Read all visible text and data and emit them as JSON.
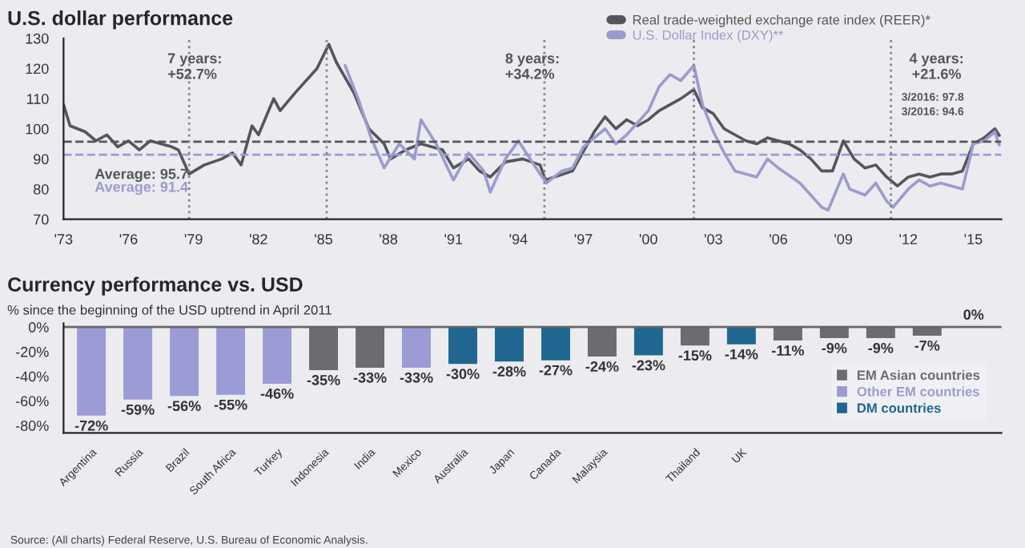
{
  "chart_data": [
    {
      "type": "line",
      "title": "U.S. dollar performance",
      "legend": "top right",
      "xlim": [
        1973,
        2016.3
      ],
      "ylim": [
        70,
        130
      ],
      "xticks": [
        {
          "value": 1973,
          "label": "'73"
        },
        {
          "value": 1976,
          "label": "'76"
        },
        {
          "value": 1979,
          "label": "'79"
        },
        {
          "value": 1982,
          "label": "'82"
        },
        {
          "value": 1985,
          "label": "'85"
        },
        {
          "value": 1988,
          "label": "'88"
        },
        {
          "value": 1991,
          "label": "'91"
        },
        {
          "value": 1994,
          "label": "'94"
        },
        {
          "value": 1997,
          "label": "'97"
        },
        {
          "value": 2000,
          "label": "'00"
        },
        {
          "value": 2003,
          "label": "'03"
        },
        {
          "value": 2006,
          "label": "'06"
        },
        {
          "value": 2009,
          "label": "'09"
        },
        {
          "value": 2012,
          "label": "'12"
        },
        {
          "value": 2015,
          "label": "'15"
        }
      ],
      "yticks": [
        70,
        80,
        90,
        100,
        110,
        120,
        130
      ],
      "series": [
        {
          "name": "Real trade-weighted exchange rate index (REER)*",
          "color": "#55555c",
          "x": [
            1973,
            1973.3,
            1974,
            1974.5,
            1975,
            1975.5,
            1976,
            1976.5,
            1977,
            1978,
            1978.3,
            1978.8,
            1979.5,
            1980.3,
            1980.8,
            1981.2,
            1981.7,
            1982,
            1982.7,
            1983,
            1983.7,
            1984.7,
            1985.25,
            1985.6,
            1986.4,
            1987.1,
            1987.8,
            1988.1,
            1988.8,
            1989.5,
            1990.5,
            1991,
            1991.7,
            1992.2,
            1992.7,
            1993.4,
            1994.2,
            1995,
            1995.25,
            1996.5,
            1997.5,
            1998,
            1998.5,
            1999,
            1999.5,
            2000,
            2000.5,
            2001,
            2001.5,
            2002.1,
            2002.5,
            2003,
            2003.5,
            2004,
            2004.5,
            2005,
            2005.5,
            2006,
            2006.5,
            2007,
            2007.5,
            2008,
            2008.5,
            2009,
            2009.5,
            2010,
            2010.5,
            2011,
            2011.5,
            2012,
            2012.5,
            2013,
            2013.5,
            2014,
            2014.5,
            2015,
            2015.5,
            2016,
            2016.2
          ],
          "values": [
            108,
            101,
            99,
            96,
            98,
            94,
            96,
            93,
            96,
            94,
            93,
            85,
            88,
            90,
            92,
            88,
            101,
            98,
            110,
            106,
            112,
            120,
            128,
            122,
            112,
            100,
            95,
            90,
            93,
            95,
            93,
            87,
            90,
            86,
            84,
            89,
            90,
            88,
            83,
            86,
            99,
            104,
            100,
            103,
            101,
            103,
            106,
            108,
            110,
            113,
            107,
            105,
            100,
            98,
            96,
            95,
            97,
            96,
            95,
            93,
            90,
            86,
            86,
            96,
            90,
            87,
            88,
            84,
            81,
            84,
            85,
            84,
            85,
            85,
            86,
            95,
            97,
            100,
            97.8
          ]
        },
        {
          "name": "U.S. Dollar Index (DXY)**",
          "color": "#9b9bd0",
          "x": [
            1986,
            1986.6,
            1987.2,
            1987.8,
            1988.5,
            1989.2,
            1989.5,
            1990.2,
            1991,
            1991.7,
            1992.4,
            1992.7,
            1993.4,
            1994,
            1995,
            1995.3,
            1996,
            1996.5,
            1997,
            1997.5,
            1998,
            1998.5,
            1999,
            1999.5,
            2000,
            2000.5,
            2001,
            2001.5,
            2002.1,
            2002.5,
            2003,
            2003.5,
            2004,
            2005,
            2005.5,
            2006,
            2007,
            2007.5,
            2008,
            2008.3,
            2009,
            2009.3,
            2010,
            2010.5,
            2011,
            2011.3,
            2012,
            2012.5,
            2013,
            2013.5,
            2014,
            2014.5,
            2015,
            2015.5,
            2016,
            2016.2
          ],
          "values": [
            121,
            110,
            97,
            87,
            95,
            90,
            103,
            95,
            83,
            92,
            86,
            79,
            90,
            96,
            85,
            82,
            86,
            87,
            94,
            97,
            100,
            95,
            98,
            102,
            106,
            114,
            118,
            116,
            121,
            108,
            99,
            92,
            86,
            84,
            90,
            87,
            82,
            78,
            74,
            73,
            85,
            80,
            78,
            82,
            76,
            74,
            80,
            83,
            81,
            82,
            81,
            80,
            95,
            96,
            99,
            94.6
          ]
        }
      ],
      "ref_lines": [
        {
          "axis": "y",
          "value": 95.7,
          "label": "Average: 95.7",
          "color": "#55555c",
          "line_style": "dashed"
        },
        {
          "axis": "y",
          "value": 91.4,
          "label": "Average: 91.4",
          "color": "#9b9bd0",
          "line_style": "dashed"
        },
        {
          "axis": "x",
          "value": 1978.8,
          "color": "#888888",
          "line_style": "dotted"
        },
        {
          "axis": "x",
          "value": 1985.15,
          "color": "#888888",
          "line_style": "dotted"
        },
        {
          "axis": "x",
          "value": 1995.2,
          "color": "#888888",
          "line_style": "dotted"
        },
        {
          "axis": "x",
          "value": 2002.1,
          "color": "#888888",
          "line_style": "dotted"
        },
        {
          "axis": "x",
          "value": 2011.2,
          "color": "#888888",
          "line_style": "dotted"
        }
      ],
      "annotations": [
        "7 years:\n+52.7%",
        "8 years:\n+34.2%",
        "4 years:\n+21.6%",
        "3/2016: 97.8",
        "3/2016: 94.6"
      ]
    },
    {
      "type": "bar",
      "title": "Currency performance vs. USD",
      "subtitle": "% since the beginning of the USD uptrend in April 2011",
      "legend": "bottom right",
      "ylim": [
        -86,
        3
      ],
      "yticks": [
        {
          "value": 0,
          "label": "0%"
        },
        {
          "value": -20,
          "label": "-20%"
        },
        {
          "value": -40,
          "label": "-40%"
        },
        {
          "value": -60,
          "label": "-60%"
        },
        {
          "value": -80,
          "label": "-80%"
        }
      ],
      "categories": [
        "Argentina",
        "Russia",
        "Brazil",
        "South Africa",
        "Turkey",
        "Indonesia",
        "India",
        "Mexico",
        "Australia",
        "Japan",
        "Canada",
        "Malaysia",
        null,
        "Thailand",
        "UK",
        null,
        null,
        null,
        null,
        null
      ],
      "series": [
        {
          "name": "EM Asian countries",
          "color": "#6b6b70",
          "values": [
            null,
            null,
            null,
            null,
            null,
            -35,
            -33,
            null,
            null,
            null,
            null,
            -24,
            null,
            -15,
            null,
            -11,
            -9,
            -9,
            -7,
            0
          ],
          "value_labels": [
            null,
            null,
            null,
            null,
            null,
            "-35%",
            "-33%",
            null,
            null,
            null,
            null,
            "-24%",
            null,
            "-15%",
            null,
            "-11%",
            "-9%",
            "-9%",
            "-7%",
            "0%"
          ]
        },
        {
          "name": "Other EM countries",
          "color": "#9b9bd6",
          "values": [
            -72,
            -59,
            -56,
            -55,
            -46,
            null,
            null,
            -33,
            null,
            null,
            null,
            null,
            null,
            null,
            null,
            null,
            null,
            null,
            null,
            null
          ],
          "value_labels": [
            "-72%",
            "-59%",
            "-56%",
            "-55%",
            "-46%",
            null,
            null,
            "-33%",
            null,
            null,
            null,
            null,
            null,
            null,
            null,
            null,
            null,
            null,
            null,
            null
          ]
        },
        {
          "name": "DM countries",
          "color": "#1f6690",
          "values": [
            null,
            null,
            null,
            null,
            null,
            null,
            null,
            null,
            -30,
            -28,
            -27,
            null,
            -23,
            null,
            -14,
            null,
            null,
            null,
            null,
            null
          ],
          "value_labels": [
            null,
            null,
            null,
            null,
            null,
            null,
            null,
            null,
            "-30%",
            "-28%",
            "-27%",
            null,
            "-23%",
            null,
            "-14%",
            null,
            null,
            null,
            null,
            null
          ]
        }
      ],
      "annotations": [
        "Source: (All charts) Federal Reserve, U.S. Bureau of Economic Analysis."
      ]
    }
  ]
}
